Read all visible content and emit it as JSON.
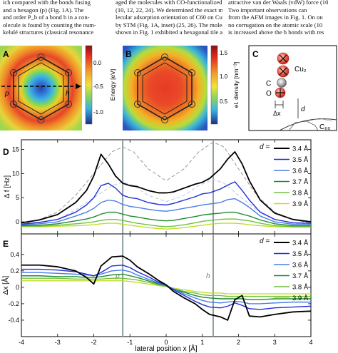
{
  "body_text": {
    "col1": [
      "ich compared with the bonds fusing",
      "and a hexagon (p) (Fig. 1A). The",
      "and order P_b of a bond b in a con-",
      "olecule is found by counting the num-",
      "kelulé structures (classical resonance"
    ],
    "col2": [
      "aged the molecules with CO-functionalized tips",
      "(10, 12, 22, 24). We determined the exact mo-",
      "lecular adsorption orientation of C60 on Cu(111)",
      "by STM (Fig. 1A, inset) (25, 26). The molecule",
      "shown in Fig. 1 exhibited a hexagonal tile and is"
    ],
    "col3": [
      "attractive van der Waals (vdW) force (10",
      "Two important observations can",
      "from the AFM images in Fig. 1. On on",
      "no corrugation on the atomic scale (10",
      "is increased above the h bonds with res"
    ]
  },
  "panel_a": {
    "label": "A",
    "label_p": "p",
    "label_h": "h",
    "colorbar": {
      "title": "Energy [eV]",
      "ticks": [
        "0.0",
        "-0.5",
        "-1.0"
      ]
    }
  },
  "panel_b": {
    "label": "B",
    "colorbar": {
      "title": "el. density [nm⁻³]",
      "ticks": [
        "1.5",
        "1.0",
        "0.5"
      ]
    }
  },
  "panel_c": {
    "label": "C",
    "cu2": "Cu₂",
    "c": "C",
    "o": "O",
    "dx": "Δx",
    "d": "d",
    "c60": "C₆₀"
  },
  "colors": {
    "d34": "#000000",
    "d35": "#1f2ed6",
    "d36": "#4a7ee8",
    "d37": "#1e8a2e",
    "d38": "#6ec23a",
    "d39": "#c3dd2a",
    "grid_line": "#8e9ea0"
  },
  "chart_data": [
    {
      "type": "line",
      "panel": "D",
      "ylabel": "Δ f [Hz]",
      "xlim": [
        -4,
        4
      ],
      "ylim": [
        -2.5,
        17
      ],
      "yticks": [
        0,
        5,
        10,
        15
      ],
      "x_ticks": [
        -4,
        -3,
        -2,
        -1,
        0,
        1,
        2,
        3,
        4
      ],
      "x_tick_labels": [
        "",
        "",
        "",
        "",
        "",
        "",
        "",
        "",
        ""
      ],
      "vlines": [
        -1.2,
        1.3
      ],
      "legend_title": "d =",
      "x": [
        -4,
        -3.5,
        -3,
        -2.5,
        -2.2,
        -2,
        -1.8,
        -1.6,
        -1.4,
        -1.2,
        -1,
        -0.8,
        -0.5,
        -0.2,
        0,
        0.2,
        0.5,
        0.8,
        1,
        1.2,
        1.5,
        1.7,
        1.9,
        2.1,
        2.3,
        2.6,
        3,
        3.5,
        4
      ],
      "series": [
        {
          "name": "3.4 Å",
          "values": [
            -0.2,
            0.4,
            1.5,
            4.0,
            6.5,
            9.5,
            14.0,
            12.0,
            9.5,
            8.0,
            7.5,
            7.3,
            6.5,
            6.0,
            6.0,
            6.2,
            7.0,
            7.8,
            8.2,
            9.0,
            11.0,
            13.0,
            14.5,
            12.0,
            8.5,
            4.5,
            1.8,
            0.5,
            0.0
          ]
        },
        {
          "name": "3.5 Å",
          "values": [
            -0.5,
            -0.1,
            0.5,
            2.0,
            3.5,
            5.0,
            7.5,
            8.0,
            7.0,
            5.5,
            5.0,
            4.8,
            4.0,
            3.6,
            3.5,
            3.8,
            4.5,
            5.2,
            5.8,
            6.0,
            6.8,
            7.6,
            8.3,
            6.5,
            4.5,
            2.0,
            0.5,
            -0.2,
            -0.3
          ]
        },
        {
          "name": "3.6 Å",
          "values": [
            -0.6,
            -0.4,
            0.0,
            1.2,
            2.0,
            2.8,
            4.0,
            4.5,
            4.3,
            3.6,
            3.2,
            3.0,
            2.6,
            2.3,
            2.2,
            2.4,
            2.8,
            3.2,
            3.5,
            3.7,
            4.0,
            4.6,
            4.8,
            4.0,
            3.0,
            1.2,
            0.0,
            -0.5,
            -0.5
          ]
        },
        {
          "name": "3.7 Å",
          "values": [
            -0.8,
            -0.7,
            -0.4,
            0.2,
            0.6,
            1.0,
            1.6,
            2.0,
            2.0,
            1.6,
            1.2,
            1.0,
            0.6,
            0.3,
            0.2,
            0.3,
            0.7,
            1.1,
            1.4,
            1.6,
            1.8,
            2.0,
            2.0,
            1.6,
            1.2,
            0.4,
            -0.4,
            -0.8,
            -0.8
          ]
        },
        {
          "name": "3.8 Å",
          "values": [
            -0.9,
            -0.9,
            -0.7,
            -0.4,
            -0.2,
            0.0,
            0.3,
            0.5,
            0.5,
            0.3,
            0.0,
            -0.3,
            -0.6,
            -0.9,
            -1.0,
            -0.9,
            -0.6,
            -0.2,
            0.1,
            0.3,
            0.5,
            0.6,
            0.6,
            0.4,
            0.2,
            -0.3,
            -0.8,
            -1.0,
            -1.0
          ]
        },
        {
          "name": "3.9 Å",
          "values": [
            -1.0,
            -1.0,
            -0.9,
            -0.8,
            -0.7,
            -0.6,
            -0.4,
            -0.3,
            -0.3,
            -0.5,
            -0.7,
            -0.9,
            -1.2,
            -1.4,
            -1.5,
            -1.4,
            -1.2,
            -0.9,
            -0.7,
            -0.5,
            -0.3,
            -0.3,
            -0.3,
            -0.4,
            -0.6,
            -0.8,
            -1.0,
            -1.1,
            -1.1
          ]
        }
      ],
      "dashed": [
        {
          "color": "#999999",
          "x": [
            -4,
            -3.5,
            -3,
            -2.5,
            -2,
            -1.5,
            -1.2,
            -0.9,
            -0.5,
            0,
            0.5,
            0.9,
            1.3,
            1.6,
            2,
            2.5,
            3,
            3.5,
            4
          ],
          "values": [
            -0.5,
            0.5,
            2.0,
            5.5,
            10.0,
            14.5,
            15.5,
            14.5,
            11.0,
            8.5,
            11.0,
            14.5,
            16.5,
            15.5,
            11.0,
            5.5,
            2.0,
            0.5,
            -0.3
          ]
        },
        {
          "color": "#bfc6e6",
          "x": [
            -4,
            -3.5,
            -3,
            -2.5,
            -2,
            -1.5,
            -1.2,
            -0.9,
            -0.5,
            0,
            0.5,
            0.9,
            1.3,
            1.6,
            2,
            2.5,
            3,
            3.5,
            4
          ],
          "values": [
            -0.8,
            -0.3,
            0.5,
            2.5,
            5.0,
            7.5,
            8.2,
            7.5,
            5.5,
            4.2,
            5.5,
            7.5,
            8.8,
            8.0,
            5.5,
            2.5,
            0.5,
            -0.3,
            -0.6
          ]
        }
      ]
    },
    {
      "type": "line",
      "panel": "E",
      "ylabel": "Δx [Å]",
      "xlabel": "lateral position x [Å]",
      "xlim": [
        -4,
        4
      ],
      "ylim": [
        -0.6,
        0.65
      ],
      "yticks": [
        -0.4,
        -0.2,
        0,
        0.2,
        0.4
      ],
      "x_ticks": [
        -4,
        -3,
        -2,
        -1,
        0,
        1,
        2,
        3,
        4
      ],
      "x_tick_labels": [
        "-4",
        "-3",
        "-2",
        "-1",
        "0",
        "1",
        "2",
        "3",
        "4"
      ],
      "vlines": [
        -1.2,
        1.3
      ],
      "vline_labels": [
        "p",
        "h"
      ],
      "legend_title": "d =",
      "x": [
        -4,
        -3.5,
        -3,
        -2.5,
        -2.2,
        -2,
        -1.8,
        -1.5,
        -1.2,
        -1,
        -0.8,
        -0.5,
        -0.2,
        0,
        0.2,
        0.5,
        0.8,
        1,
        1.2,
        1.5,
        1.7,
        1.9,
        2.1,
        2.3,
        2.6,
        3,
        3.5,
        4
      ],
      "series": [
        {
          "name": "3.4 Å",
          "values": [
            0.27,
            0.27,
            0.25,
            0.2,
            0.12,
            0.04,
            0.26,
            0.37,
            0.38,
            0.33,
            0.25,
            0.17,
            0.08,
            0.03,
            -0.05,
            -0.13,
            -0.2,
            -0.27,
            -0.33,
            -0.36,
            -0.4,
            -0.15,
            -0.1,
            -0.35,
            -0.36,
            -0.33,
            -0.3,
            -0.29
          ]
        },
        {
          "name": "3.5 Å",
          "values": [
            0.22,
            0.22,
            0.21,
            0.19,
            0.16,
            0.14,
            0.18,
            0.26,
            0.27,
            0.24,
            0.19,
            0.13,
            0.06,
            0.03,
            -0.03,
            -0.1,
            -0.17,
            -0.21,
            -0.24,
            -0.25,
            -0.23,
            -0.19,
            -0.22,
            -0.26,
            -0.27,
            -0.25,
            -0.24,
            -0.23
          ]
        },
        {
          "name": "3.6 Å",
          "values": [
            0.18,
            0.18,
            0.17,
            0.16,
            0.15,
            0.14,
            0.16,
            0.2,
            0.21,
            0.19,
            0.15,
            0.1,
            0.05,
            0.02,
            -0.02,
            -0.08,
            -0.13,
            -0.16,
            -0.18,
            -0.19,
            -0.18,
            -0.17,
            -0.18,
            -0.2,
            -0.2,
            -0.19,
            -0.18,
            -0.18
          ]
        },
        {
          "name": "3.7 Å",
          "values": [
            0.14,
            0.14,
            0.13,
            0.13,
            0.12,
            0.12,
            0.13,
            0.15,
            0.16,
            0.14,
            0.12,
            0.08,
            0.04,
            0.02,
            -0.02,
            -0.06,
            -0.1,
            -0.12,
            -0.13,
            -0.14,
            -0.14,
            -0.14,
            -0.14,
            -0.15,
            -0.15,
            -0.14,
            -0.14,
            -0.14
          ]
        },
        {
          "name": "3.8 Å",
          "values": [
            0.11,
            0.11,
            0.11,
            0.1,
            0.1,
            0.1,
            0.1,
            0.11,
            0.11,
            0.1,
            0.09,
            0.06,
            0.03,
            0.01,
            -0.02,
            -0.05,
            -0.07,
            -0.09,
            -0.1,
            -0.1,
            -0.11,
            -0.11,
            -0.11,
            -0.11,
            -0.11,
            -0.11,
            -0.11,
            -0.11
          ]
        },
        {
          "name": "3.9 Å",
          "values": [
            0.08,
            0.08,
            0.08,
            0.08,
            0.08,
            0.08,
            0.08,
            0.08,
            0.08,
            0.07,
            0.06,
            0.04,
            0.02,
            0.01,
            -0.01,
            -0.03,
            -0.05,
            -0.06,
            -0.07,
            -0.07,
            -0.08,
            -0.08,
            -0.08,
            -0.08,
            -0.08,
            -0.08,
            -0.08,
            -0.08
          ]
        }
      ]
    }
  ]
}
